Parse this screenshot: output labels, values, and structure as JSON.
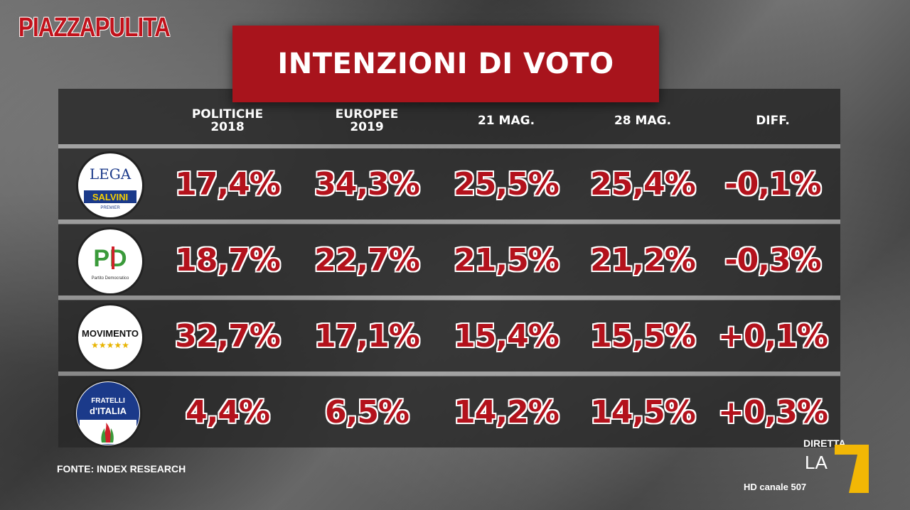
{
  "show": {
    "name": "PIAZZAPULITA"
  },
  "title": "INTENZIONI DI VOTO",
  "columns": [
    {
      "line1": "POLITICHE",
      "line2": "2018"
    },
    {
      "line1": "EUROPEE",
      "line2": "2019"
    },
    {
      "line1": "21 MAG.",
      "line2": ""
    },
    {
      "line1": "28 MAG.",
      "line2": ""
    },
    {
      "line1": "DIFF.",
      "line2": ""
    }
  ],
  "rows": [
    {
      "party_logo_text": [
        "LEGA",
        "SALVINI",
        "PREMIER"
      ],
      "values": [
        "17,4%",
        "34,3%",
        "25,5%",
        "25,4%",
        "-0,1%"
      ]
    },
    {
      "party_logo_text": [
        "PD",
        "Partito Democratico"
      ],
      "values": [
        "18,7%",
        "22,7%",
        "21,5%",
        "21,2%",
        "-0,3%"
      ]
    },
    {
      "party_logo_text": [
        "MOVIMENTO",
        "★★★★★"
      ],
      "values": [
        "32,7%",
        "17,1%",
        "15,4%",
        "15,5%",
        "+0,1%"
      ]
    },
    {
      "party_logo_text": [
        "FRATELLI",
        "d'ITALIA"
      ],
      "values": [
        "4,4%",
        "6,5%",
        "14,2%",
        "14,5%",
        "+0,3%"
      ]
    }
  ],
  "source": "FONTE: INDEX RESEARCH",
  "channel": {
    "diretta": "DIRETTA",
    "la": "LA",
    "seven": "7",
    "hd": "HD canale 507"
  },
  "colors": {
    "banner": "#a8141c",
    "values": "#b3121c"
  }
}
